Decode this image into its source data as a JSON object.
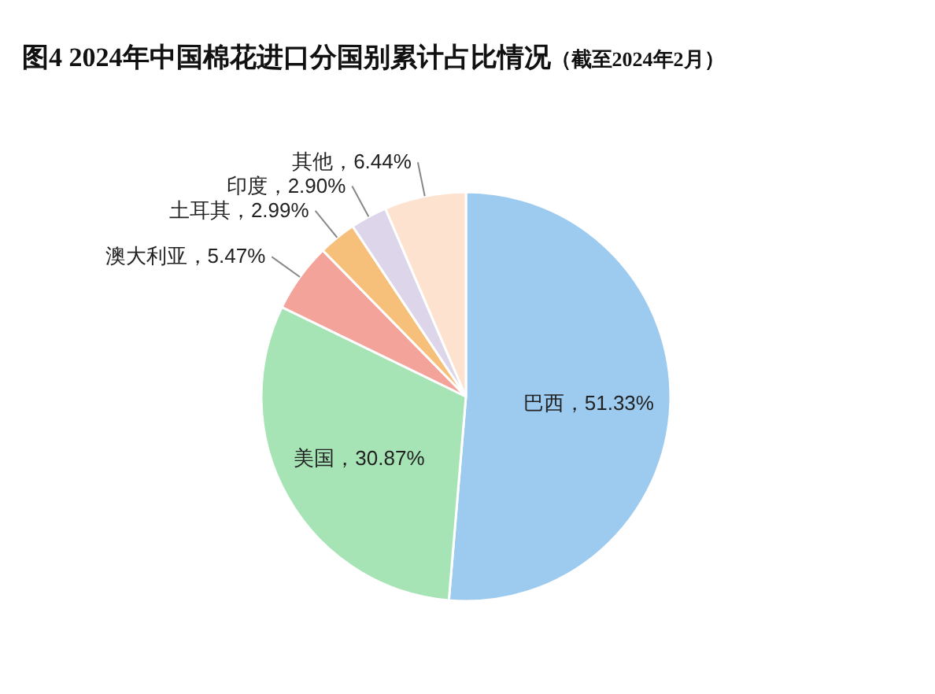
{
  "chart_data": {
    "type": "pie",
    "title": "图4  2024年中国棉花进口分国别累计占比情况（截至2024年2月）",
    "categories": [
      "巴西",
      "美国",
      "澳大利亚",
      "土耳其",
      "印度",
      "其他"
    ],
    "values": [
      51.33,
      30.87,
      5.47,
      2.99,
      2.9,
      6.44
    ],
    "colors": [
      "#9dcbf0",
      "#a6e3b5",
      "#f4a39a",
      "#f7c07a",
      "#ddd6ea",
      "#fde2cf"
    ],
    "value_labels": [
      "，51.33%",
      "，30.87%",
      "，5.47%",
      "，2.99%",
      "，2.90%",
      "，6.44%"
    ],
    "legend": false
  }
}
